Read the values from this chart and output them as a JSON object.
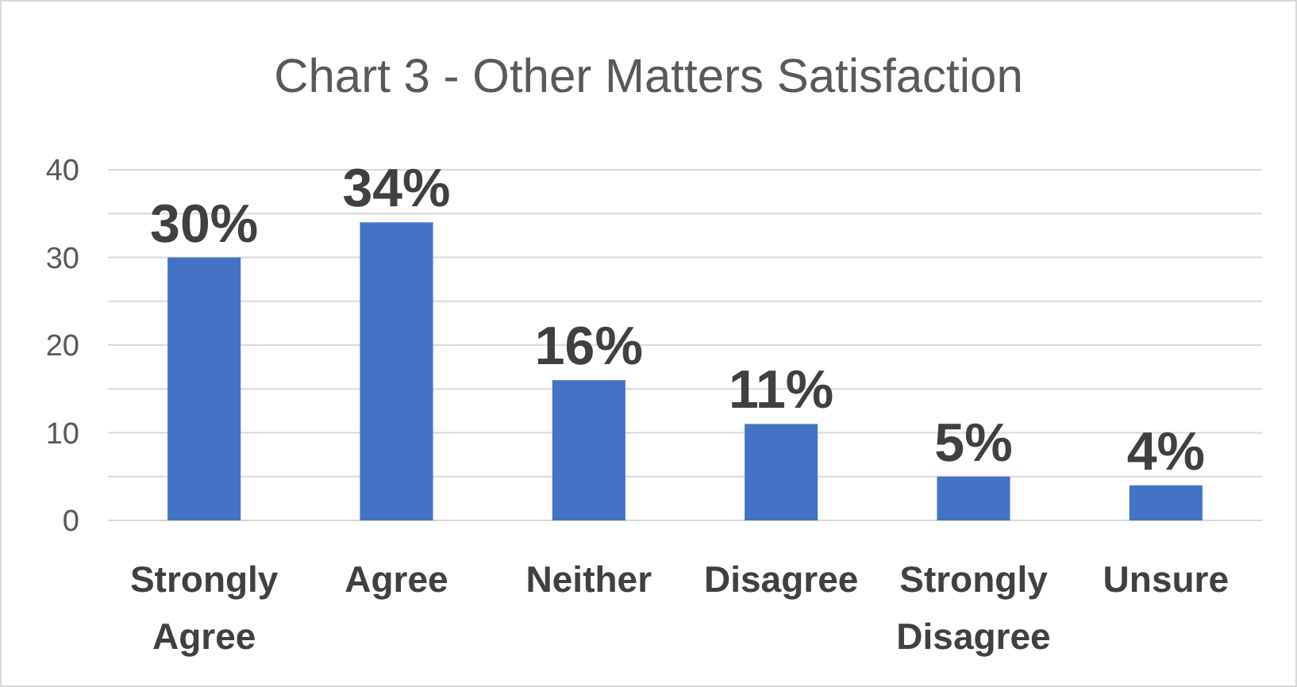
{
  "chart_data": {
    "type": "bar",
    "title": "Chart 3 - Other Matters Satisfaction",
    "categories": [
      "Strongly Agree",
      "Agree",
      "Neither",
      "Disagree",
      "Strongly Disagree",
      "Unsure"
    ],
    "values": [
      30,
      34,
      16,
      11,
      5,
      4
    ],
    "color": "#4472c4",
    "value_labels": [
      "30%",
      "34%",
      "16%",
      "11%",
      "5%",
      "4%"
    ],
    "ylim": [
      0,
      40
    ],
    "yticks": [
      0,
      {
        "value": 5,
        "label": null
      },
      10,
      {
        "value": 15,
        "label": null
      },
      20,
      {
        "value": 25,
        "label": null
      },
      30,
      {
        "value": 35,
        "label": null
      },
      40
    ],
    "grid": "y"
  }
}
